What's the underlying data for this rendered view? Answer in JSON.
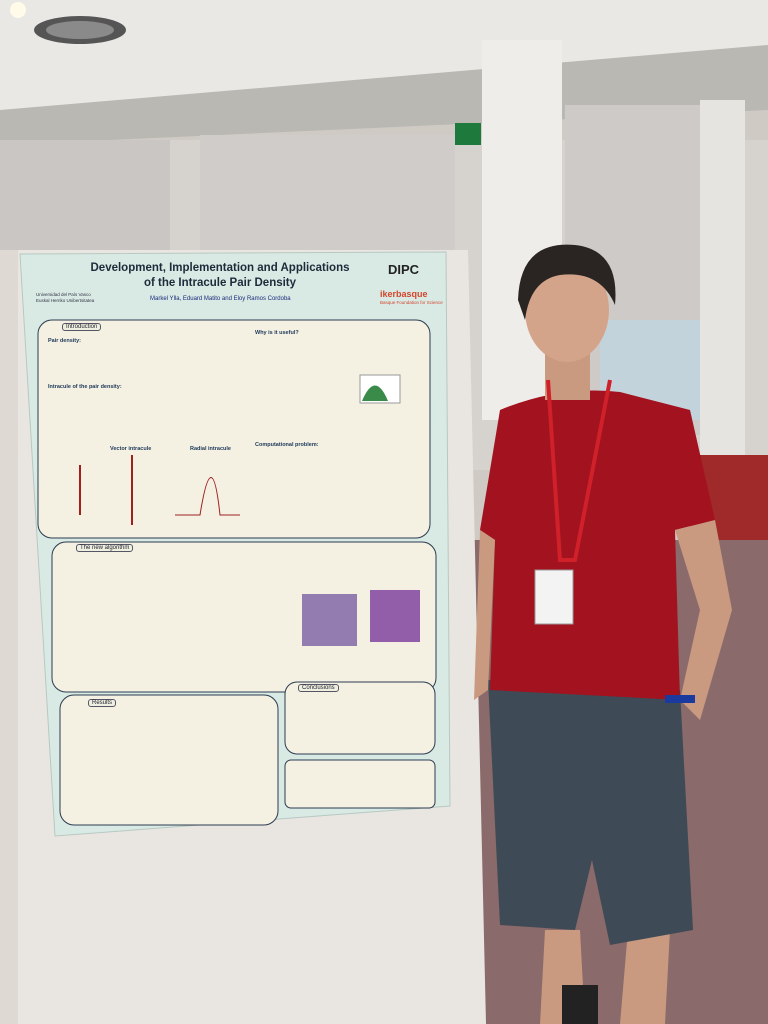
{
  "poster": {
    "title": [
      "Development, Implementation and Applications",
      "of the Intracule Pair Density"
    ],
    "authors": "Markel Ylla, Eduard Matito and Eloy Ramos Cordoba",
    "university": [
      "Universidad del País Vasco",
      "Euskal Herriko Unibertsitatea"
    ],
    "logos": [
      "DIPC",
      "ikerbasque",
      "Basque Foundation for Science"
    ],
    "sections": [
      {
        "label": "Introduction"
      },
      {
        "label": "Pair density:"
      },
      {
        "label": "Intracule of the pair density:"
      },
      {
        "label": "Vector intracule"
      },
      {
        "label": "Radial intracule"
      },
      {
        "label": "Why is it useful?"
      },
      {
        "label": "Computational problem:"
      },
      {
        "label": "The new algorithm"
      },
      {
        "label": "Results"
      },
      {
        "label": "Conclusions"
      }
    ]
  }
}
